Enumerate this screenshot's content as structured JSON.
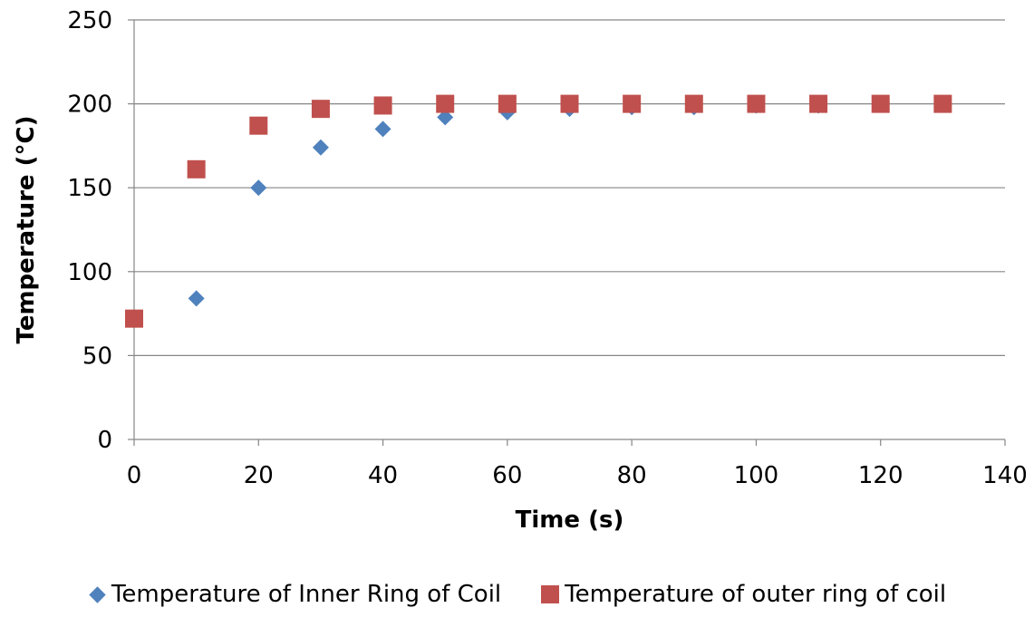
{
  "chart_data": {
    "type": "scatter",
    "xlabel": "Time (s)",
    "ylabel": "Temperature (°C)",
    "xlim": [
      0,
      140
    ],
    "ylim": [
      0,
      250
    ],
    "xticks": [
      0,
      20,
      40,
      60,
      80,
      100,
      120,
      140
    ],
    "yticks": [
      0,
      50,
      100,
      150,
      200,
      250
    ],
    "grid": "horizontal",
    "legend_position": "bottom",
    "series": [
      {
        "name": "Temperature of Inner Ring of Coil",
        "marker": "diamond",
        "color": "#4F81BD",
        "x": [
          0,
          10,
          20,
          30,
          40,
          50,
          60,
          70,
          80,
          90,
          100,
          110,
          120,
          130
        ],
        "y": [
          72,
          84,
          150,
          174,
          185,
          192,
          195,
          197,
          198,
          198,
          199,
          199,
          200,
          200
        ]
      },
      {
        "name": "Temperature of outer ring of coil",
        "marker": "square",
        "color": "#C0504D",
        "x": [
          0,
          10,
          20,
          30,
          40,
          50,
          60,
          70,
          80,
          90,
          100,
          110,
          120,
          130
        ],
        "y": [
          72,
          161,
          187,
          197,
          199,
          200,
          200,
          200,
          200,
          200,
          200,
          200,
          200,
          200
        ]
      }
    ]
  }
}
